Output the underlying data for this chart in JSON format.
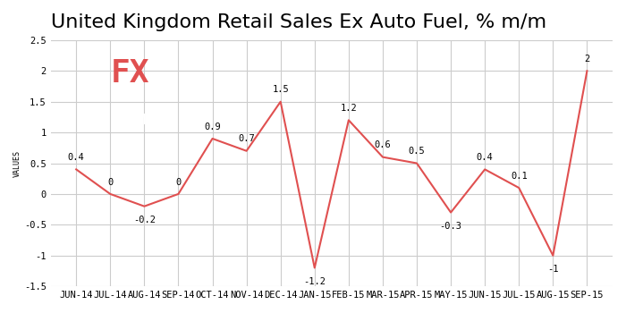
{
  "title": "United Kingdom Retail Sales Ex Auto Fuel, % m/m",
  "ylabel": "VALUES",
  "categories": [
    "JUN-14",
    "JUL-14",
    "AUG-14",
    "SEP-14",
    "OCT-14",
    "NOV-14",
    "DEC-14",
    "JAN-15",
    "FEB-15",
    "MAR-15",
    "APR-15",
    "MAY-15",
    "JUN-15",
    "JUL-15",
    "AUG-15",
    "SEP-15"
  ],
  "values": [
    0.4,
    0.0,
    -0.2,
    0.0,
    0.9,
    0.7,
    1.5,
    -1.2,
    1.2,
    0.6,
    0.5,
    -0.3,
    0.4,
    0.1,
    -1.0,
    2.0
  ],
  "line_color": "#e05050",
  "background_color": "#ffffff",
  "plot_bg_color": "#ffffff",
  "grid_color": "#cccccc",
  "title_fontsize": 16,
  "label_fontsize": 7.5,
  "tick_fontsize": 7.5,
  "ylabel_fontsize": 6,
  "ylim": [
    -1.5,
    2.5
  ],
  "yticks": [
    -1.5,
    -1.0,
    -0.5,
    0.0,
    0.5,
    1.0,
    1.5,
    2.0,
    2.5
  ],
  "logo_bg": "#7a7a7a",
  "logo_fx_color": "#e05050",
  "logo_team_color": "#ffffff"
}
